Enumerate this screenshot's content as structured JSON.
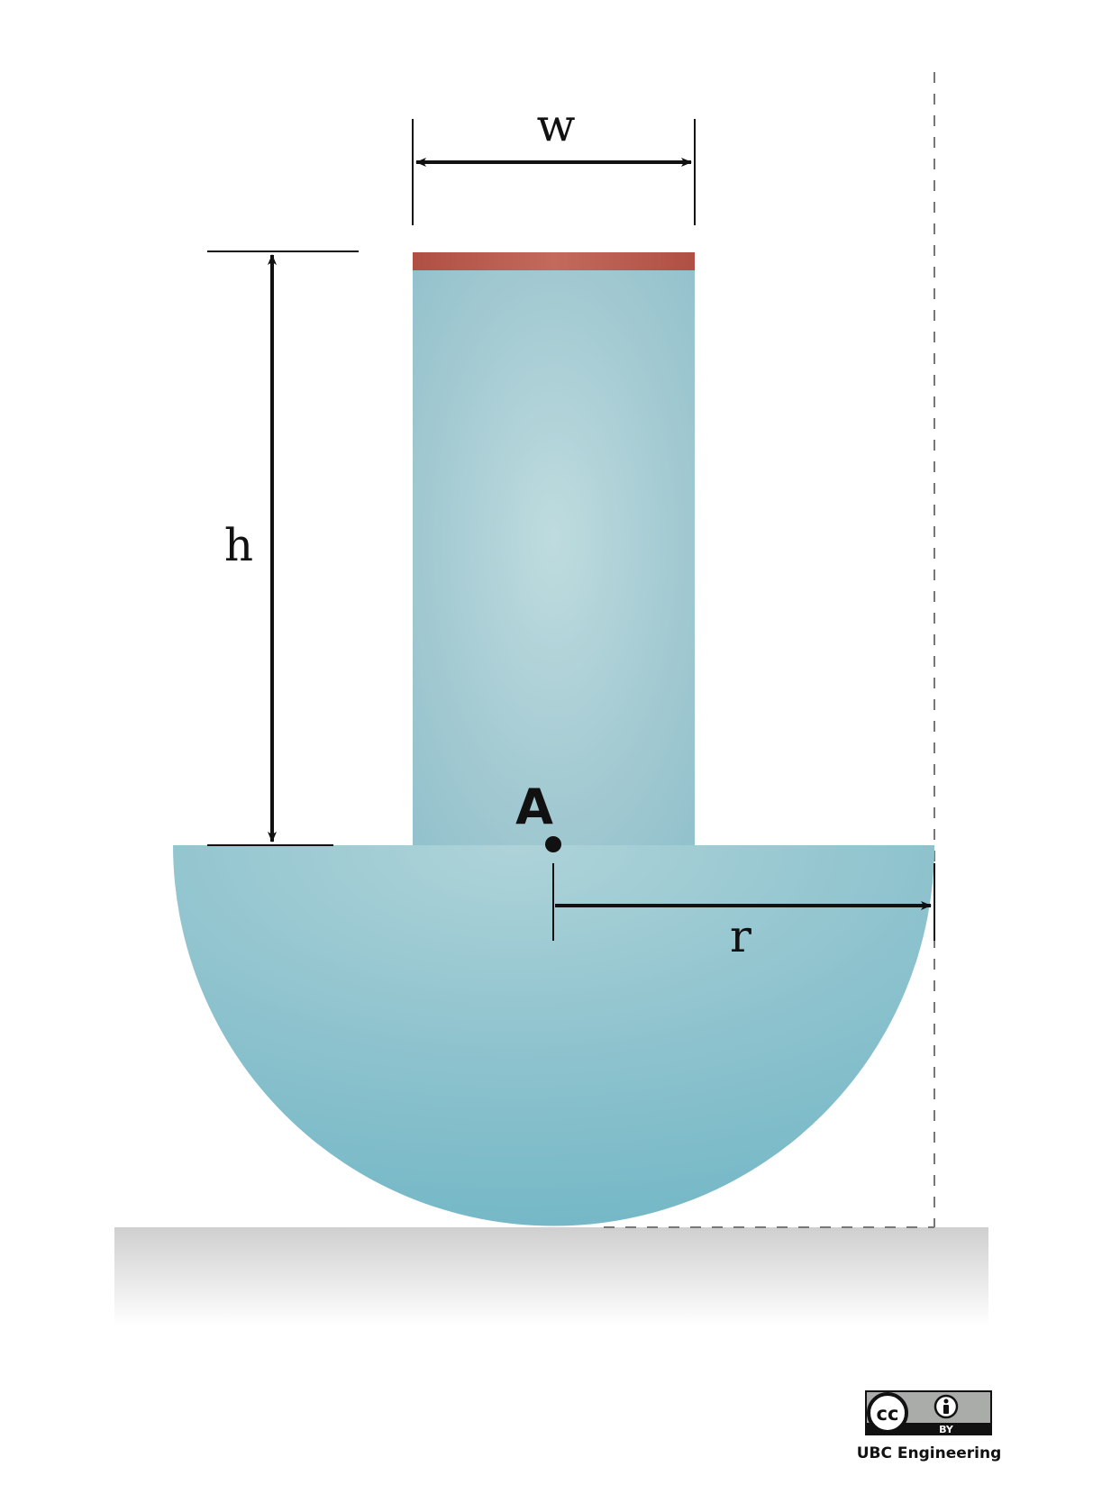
{
  "labels": {
    "width": "w",
    "height": "h",
    "radius": "r",
    "point": "A"
  },
  "license": {
    "cc_text": "cc",
    "by_text": "BY",
    "credit": "UBC Engineering"
  },
  "colors": {
    "body_light": "#bcdbe0",
    "body_dark": "#78b9c8",
    "top_strip": "#b85a4c",
    "ground": "#d4d4d4",
    "ink": "#111111"
  }
}
